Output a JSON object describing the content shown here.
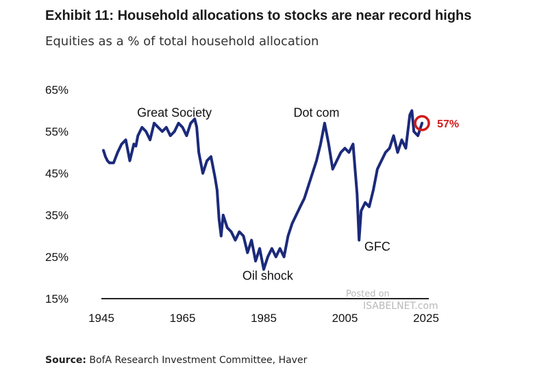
{
  "header": {
    "title": "Exhibit 11: Household allocations to stocks are near record highs",
    "subtitle": "Equities as a % of total household allocation"
  },
  "footer": {
    "source_label": "Source:",
    "source_text": "BofA Research Investment Committee, Haver"
  },
  "watermark": {
    "line1": "Posted on",
    "line2": "ISABELNET.com"
  },
  "colors": {
    "line": "#1b2a7a",
    "callout": "#d11a1a",
    "axis": "#222222"
  },
  "chart_data": {
    "type": "line",
    "title": "Exhibit 11: Household allocations to stocks are near record highs",
    "subtitle": "Equities as a % of total household allocation",
    "xlim": [
      1945,
      2025
    ],
    "ylim": [
      15,
      65
    ],
    "x_ticks": [
      1945,
      1965,
      1985,
      2005,
      2025
    ],
    "y_ticks": [
      15,
      25,
      35,
      45,
      55,
      65
    ],
    "y_tick_labels": [
      "15%",
      "25%",
      "35%",
      "45%",
      "55%",
      "65%"
    ],
    "x_tick_labels": [
      "1945",
      "1965",
      "1985",
      "2005",
      "2025"
    ],
    "grid": false,
    "series": [
      {
        "x": [
          1945.5,
          1946,
          1946.5,
          1947,
          1948,
          1949,
          1950,
          1951,
          1952,
          1953,
          1953.5,
          1954,
          1955,
          1956,
          1957,
          1958,
          1959,
          1960,
          1961,
          1962,
          1963,
          1964,
          1965,
          1966,
          1967,
          1968,
          1968.5,
          1969,
          1970,
          1971,
          1972,
          1973,
          1973.5,
          1974,
          1974.5,
          1975,
          1976,
          1977,
          1978,
          1979,
          1980,
          1981,
          1982,
          1983,
          1984,
          1985,
          1986,
          1987,
          1988,
          1989,
          1990,
          1991,
          1992,
          1993,
          1994,
          1995,
          1996,
          1997,
          1998,
          1999,
          2000,
          2001,
          2002,
          2003,
          2004,
          2005,
          2006,
          2007,
          2008,
          2008.5,
          2009,
          2010,
          2011,
          2012,
          2013,
          2014,
          2015,
          2016,
          2017,
          2018,
          2019,
          2020,
          2021,
          2021.5,
          2022,
          2023,
          2024
        ],
        "y": [
          50.5,
          49,
          48,
          47.5,
          47.5,
          50,
          52,
          53,
          48,
          52,
          51.5,
          54,
          56,
          55,
          53,
          57,
          56,
          55,
          56,
          54,
          55,
          57,
          56,
          54,
          57,
          58,
          56,
          50,
          45,
          48,
          49,
          44,
          41,
          34,
          30,
          35,
          32,
          31,
          29,
          31,
          30,
          26,
          29,
          24,
          27,
          22,
          25,
          27,
          25,
          27,
          25,
          30,
          33,
          35,
          37,
          39,
          42,
          45,
          48,
          52,
          57,
          52,
          46,
          48,
          50,
          51,
          50,
          52,
          40,
          29,
          36,
          38,
          37,
          41,
          46,
          48,
          50,
          51,
          54,
          50,
          53,
          51,
          59,
          60,
          55,
          54,
          57
        ]
      }
    ],
    "annotations": [
      {
        "text": "Great Society",
        "x": 1963,
        "y": 58.5
      },
      {
        "text": "Dot com",
        "x": 1998,
        "y": 58.5
      },
      {
        "text": "Oil shock",
        "x": 1986,
        "y": 19.5
      },
      {
        "text": "GFC",
        "x": 2013,
        "y": 26.5
      }
    ],
    "callout": {
      "text": "57%",
      "x": 2024,
      "y": 57
    }
  }
}
